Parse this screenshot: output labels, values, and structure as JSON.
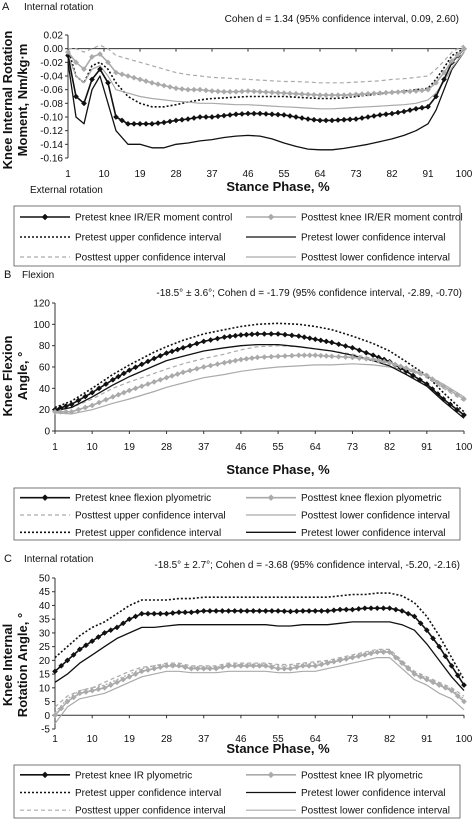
{
  "chart_data": [
    {
      "panel": "A",
      "type": "line",
      "top_note": "Internal rotation",
      "bottom_note": "External rotation",
      "stat": "Cohen d = 1.34 (95% confidence interval, 0.09, 2.60)",
      "xlabel": "Stance Phase, %",
      "ylabel": "Knee Internal Rotation Moment, Nm/kg·m",
      "ylabel_lines": [
        "Knee Internal Rotation",
        "Moment, Nm/kg·m"
      ],
      "xlim": [
        1,
        100
      ],
      "ylim": [
        -0.16,
        0.02
      ],
      "y_inverted_labels": false,
      "xticks": [
        1,
        10,
        19,
        28,
        37,
        46,
        55,
        64,
        73,
        82,
        91,
        100
      ],
      "yticks": [
        0.02,
        0,
        -0.02,
        -0.04,
        -0.06,
        -0.08,
        -0.1,
        -0.12,
        -0.14,
        -0.16
      ],
      "ytick_labels": [
        "0.02",
        "0.00",
        "-0.02",
        "-0.04",
        "-0.06",
        "-0.08",
        "-0.10",
        "-0.12",
        "-0.14",
        "-0.16"
      ],
      "zero_line": true,
      "x": [
        1,
        3,
        5,
        7,
        9,
        11,
        13,
        16,
        19,
        22,
        25,
        28,
        31,
        34,
        37,
        40,
        43,
        46,
        49,
        52,
        55,
        58,
        61,
        64,
        67,
        70,
        73,
        76,
        79,
        82,
        85,
        88,
        91,
        93,
        95,
        97,
        100
      ],
      "series": [
        {
          "name": "Pretest knee IR/ER moment control",
          "style": "black-diamond",
          "values": [
            -0.01,
            -0.07,
            -0.08,
            -0.045,
            -0.03,
            -0.05,
            -0.1,
            -0.11,
            -0.11,
            -0.11,
            -0.108,
            -0.105,
            -0.103,
            -0.1,
            -0.1,
            -0.098,
            -0.096,
            -0.095,
            -0.095,
            -0.096,
            -0.097,
            -0.1,
            -0.103,
            -0.105,
            -0.105,
            -0.104,
            -0.103,
            -0.1,
            -0.097,
            -0.095,
            -0.092,
            -0.088,
            -0.085,
            -0.07,
            -0.045,
            -0.02,
            0.0
          ]
        },
        {
          "name": "Posttest knee IR/ER moment control",
          "style": "gray-diamond",
          "values": [
            -0.005,
            -0.02,
            -0.03,
            -0.012,
            -0.008,
            -0.02,
            -0.035,
            -0.04,
            -0.045,
            -0.05,
            -0.054,
            -0.058,
            -0.06,
            -0.06,
            -0.062,
            -0.063,
            -0.063,
            -0.062,
            -0.063,
            -0.064,
            -0.065,
            -0.066,
            -0.067,
            -0.068,
            -0.068,
            -0.068,
            -0.067,
            -0.066,
            -0.065,
            -0.064,
            -0.063,
            -0.062,
            -0.06,
            -0.05,
            -0.035,
            -0.018,
            0.0
          ]
        },
        {
          "name": "Pretest upper confidence interval",
          "style": "black-dotted",
          "values": [
            0.0,
            -0.04,
            -0.05,
            -0.025,
            -0.02,
            -0.03,
            -0.05,
            -0.07,
            -0.08,
            -0.085,
            -0.085,
            -0.082,
            -0.078,
            -0.075,
            -0.073,
            -0.072,
            -0.071,
            -0.07,
            -0.07,
            -0.07,
            -0.07,
            -0.071,
            -0.072,
            -0.073,
            -0.073,
            -0.072,
            -0.07,
            -0.068,
            -0.066,
            -0.064,
            -0.062,
            -0.06,
            -0.058,
            -0.045,
            -0.028,
            -0.01,
            0.0
          ]
        },
        {
          "name": "Pretest lower confidence interval",
          "style": "black-solid",
          "values": [
            -0.02,
            -0.1,
            -0.11,
            -0.06,
            -0.04,
            -0.08,
            -0.12,
            -0.14,
            -0.14,
            -0.145,
            -0.145,
            -0.14,
            -0.138,
            -0.135,
            -0.133,
            -0.13,
            -0.128,
            -0.127,
            -0.128,
            -0.132,
            -0.138,
            -0.143,
            -0.147,
            -0.148,
            -0.148,
            -0.146,
            -0.143,
            -0.14,
            -0.136,
            -0.132,
            -0.127,
            -0.12,
            -0.11,
            -0.09,
            -0.06,
            -0.03,
            -0.005
          ]
        },
        {
          "name": "Posttest upper confidence interval",
          "style": "gray-dashed",
          "values": [
            0.0,
            0.0,
            -0.005,
            0.0,
            0.005,
            0.0,
            -0.01,
            -0.015,
            -0.02,
            -0.025,
            -0.03,
            -0.035,
            -0.038,
            -0.04,
            -0.042,
            -0.043,
            -0.044,
            -0.045,
            -0.046,
            -0.047,
            -0.048,
            -0.048,
            -0.049,
            -0.05,
            -0.05,
            -0.05,
            -0.049,
            -0.048,
            -0.047,
            -0.045,
            -0.044,
            -0.042,
            -0.04,
            -0.03,
            -0.018,
            -0.005,
            0.005
          ]
        },
        {
          "name": "Posttest lower confidence interval",
          "style": "gray-solid",
          "values": [
            -0.01,
            -0.04,
            -0.05,
            -0.03,
            -0.025,
            -0.04,
            -0.06,
            -0.065,
            -0.07,
            -0.073,
            -0.075,
            -0.077,
            -0.078,
            -0.08,
            -0.08,
            -0.081,
            -0.082,
            -0.082,
            -0.083,
            -0.084,
            -0.085,
            -0.086,
            -0.087,
            -0.088,
            -0.088,
            -0.087,
            -0.086,
            -0.085,
            -0.084,
            -0.083,
            -0.082,
            -0.08,
            -0.075,
            -0.065,
            -0.048,
            -0.028,
            -0.005
          ]
        }
      ],
      "legend": [
        [
          "Pretest knee IR/ER moment control",
          "Posttest knee IR/ER moment control"
        ],
        [
          "Pretest upper confidence interval",
          "Pretest lower confidence interval"
        ],
        [
          "Posttest upper confidence interval",
          "Posttest lower confidence interval"
        ]
      ]
    },
    {
      "panel": "B",
      "type": "line",
      "top_note": "Flexion",
      "bottom_note": "",
      "stat": "-18.5° ± 3.6°; Cohen d = -1.79 (95% confidence interval, -2.89, -0.70)",
      "xlabel": "Stance Phase, %",
      "ylabel": "Knee Flexion Angle, °",
      "ylabel_lines": [
        "Knee Flexion",
        "Angle, °"
      ],
      "xlim": [
        1,
        100
      ],
      "ylim": [
        0,
        120
      ],
      "xticks": [
        1,
        10,
        19,
        28,
        37,
        46,
        55,
        64,
        73,
        82,
        91,
        100
      ],
      "yticks": [
        0,
        20,
        40,
        60,
        80,
        100,
        120
      ],
      "ytick_labels": [
        "0",
        "20",
        "40",
        "60",
        "80",
        "100",
        "120"
      ],
      "zero_line": false,
      "x": [
        1,
        5,
        10,
        15,
        19,
        25,
        28,
        32,
        37,
        42,
        46,
        50,
        55,
        60,
        64,
        68,
        73,
        78,
        82,
        86,
        91,
        95,
        100
      ],
      "series": [
        {
          "name": "Pretest knee flexion plyometric",
          "style": "black-diamond",
          "values": [
            20,
            25,
            36,
            48,
            57,
            68,
            73,
            78,
            84,
            88,
            90,
            91,
            91,
            89,
            86,
            83,
            78,
            71,
            65,
            56,
            44,
            30,
            15
          ]
        },
        {
          "name": "Posttest knee flexion plyometric",
          "style": "gray-diamond",
          "values": [
            18,
            18,
            24,
            32,
            38,
            46,
            50,
            55,
            60,
            64,
            67,
            69,
            70,
            71,
            71,
            70,
            69,
            67,
            64,
            59,
            52,
            42,
            30
          ]
        },
        {
          "name": "Posttest upper confidence interval",
          "style": "gray-dashed",
          "values": [
            20,
            22,
            30,
            40,
            46,
            54,
            58,
            63,
            68,
            72,
            76,
            79,
            80,
            79,
            77,
            75,
            72,
            68,
            64,
            58,
            50,
            40,
            28
          ]
        },
        {
          "name": "Posttest lower confidence interval",
          "style": "gray-solid",
          "values": [
            17,
            16,
            20,
            26,
            30,
            37,
            41,
            45,
            50,
            53,
            56,
            58,
            60,
            61,
            62,
            62,
            63,
            62,
            60,
            57,
            52,
            44,
            32
          ]
        },
        {
          "name": "Pretest upper confidence interval",
          "style": "black-dotted",
          "values": [
            22,
            28,
            40,
            53,
            62,
            74,
            79,
            85,
            91,
            95,
            98,
            100,
            101,
            100,
            98,
            95,
            89,
            82,
            75,
            65,
            52,
            36,
            18
          ]
        },
        {
          "name": "Pretest lower confidence interval",
          "style": "black-solid",
          "values": [
            19,
            22,
            32,
            43,
            51,
            61,
            66,
            70,
            75,
            78,
            80,
            81,
            81,
            79,
            77,
            75,
            71,
            66,
            61,
            53,
            42,
            28,
            12
          ]
        }
      ],
      "legend": [
        [
          "Pretest knee flexion plyometric",
          "Posttest knee flexion plyometric"
        ],
        [
          "Posttest upper confidence interval",
          "Posttest lower confidence interval"
        ],
        [
          "Pretest upper confidence interval",
          "Pretest lower confidence interval"
        ]
      ]
    },
    {
      "panel": "C",
      "type": "line",
      "top_note": "Internal rotation",
      "bottom_note": "",
      "stat": "-18.5° ± 2.7°; Cohen d = -3.68 (95% confidence interval, -5.20, -2.16)",
      "xlabel": "Stance Phase, %",
      "ylabel": "Knee Internal Rotation Angle, °",
      "ylabel_lines": [
        "Knee Internal",
        "Rotation Angle, °"
      ],
      "xlim": [
        1,
        100
      ],
      "ylim": [
        -5,
        50
      ],
      "xticks": [
        1,
        10,
        19,
        28,
        37,
        46,
        55,
        64,
        73,
        82,
        91,
        100
      ],
      "yticks": [
        -5,
        0,
        5,
        10,
        15,
        20,
        25,
        30,
        35,
        40,
        45,
        50
      ],
      "ytick_labels": [
        "-5",
        "0",
        "5",
        "10",
        "15",
        "20",
        "25",
        "30",
        "35",
        "40",
        "45",
        "50"
      ],
      "zero_line": true,
      "x": [
        1,
        4,
        7,
        10,
        13,
        16,
        19,
        22,
        25,
        28,
        31,
        34,
        37,
        40,
        43,
        46,
        49,
        52,
        55,
        58,
        61,
        64,
        67,
        70,
        73,
        76,
        79,
        82,
        85,
        88,
        91,
        94,
        97,
        100
      ],
      "series": [
        {
          "name": "Pretest knee IR plyometric",
          "style": "black-diamond",
          "values": [
            16,
            20,
            24,
            27,
            30,
            32,
            35,
            37,
            37,
            37,
            37.5,
            37.5,
            38,
            38,
            38,
            38,
            38,
            38,
            38,
            37.8,
            38,
            38,
            38,
            38.5,
            38.5,
            39,
            39,
            39,
            38,
            36,
            31,
            25,
            18,
            11
          ]
        },
        {
          "name": "Posttest knee IR plyometric",
          "style": "gray-diamond",
          "values": [
            0,
            5,
            8,
            9,
            10,
            12,
            14,
            16,
            17,
            18,
            18,
            17,
            17,
            17,
            18,
            18,
            18,
            18,
            17,
            17,
            18,
            18,
            19,
            20,
            21,
            22,
            23,
            23,
            19,
            15,
            13,
            11,
            9,
            5
          ]
        },
        {
          "name": "Pretest upper confidence interval",
          "style": "black-dotted",
          "values": [
            21,
            25,
            29,
            32,
            34,
            37,
            40,
            42,
            42,
            42,
            42.5,
            42.5,
            43,
            43,
            43,
            43,
            43,
            43,
            43,
            43,
            43,
            43,
            43,
            43.5,
            44,
            44,
            44.5,
            44.5,
            43.5,
            41,
            36,
            29,
            21,
            13
          ]
        },
        {
          "name": "Pretest lower confidence interval",
          "style": "black-solid",
          "values": [
            12,
            15,
            19,
            22,
            25,
            28,
            30,
            32,
            32,
            32.5,
            33,
            33,
            33,
            33,
            33,
            33,
            33,
            33,
            32.5,
            32.5,
            33,
            33,
            33,
            33.5,
            34,
            34,
            34,
            34,
            33,
            31,
            26,
            20,
            14,
            9
          ]
        },
        {
          "name": "Posttest upper confidence interval",
          "style": "gray-dashed",
          "values": [
            3,
            7,
            9,
            10,
            12,
            14,
            16,
            17.5,
            18,
            19,
            19,
            18,
            18,
            18,
            19,
            19,
            19,
            19,
            18.5,
            18.5,
            19,
            19.5,
            20,
            21,
            22,
            23,
            24,
            24,
            20,
            16,
            14,
            12,
            10,
            7
          ]
        },
        {
          "name": "Posttest lower confidence interval",
          "style": "gray-solid",
          "values": [
            -3,
            3,
            6,
            7,
            8,
            10,
            12,
            14,
            15,
            16,
            16,
            15.5,
            15.5,
            15.5,
            16,
            16,
            16,
            16,
            15.5,
            15.5,
            16,
            16,
            17,
            18,
            19,
            20,
            21,
            21,
            17,
            13,
            11,
            8,
            6,
            2
          ]
        },
        {
          "name": "Posttest upper confidence interval",
          "style": "gray-dotted",
          "values": [
            1,
            6,
            9,
            10,
            11,
            13,
            15,
            17,
            18,
            18.5,
            18.5,
            17.5,
            17.5,
            17.5,
            18.5,
            18.5,
            18.5,
            18.5,
            18,
            18,
            18.5,
            19,
            19.5,
            20.5,
            21.5,
            22.5,
            23.5,
            23.5,
            19.5,
            15.5,
            13.5,
            11.5,
            9.5,
            6
          ]
        }
      ],
      "legend": [
        [
          "Pretest knee IR plyometric",
          "Posttest knee IR plyometric"
        ],
        [
          "Pretest upper confidence interval",
          "Pretest lower confidence interval"
        ],
        [
          "Posttest upper confidence interval",
          "Posttest lower confidence interval"
        ]
      ]
    }
  ]
}
